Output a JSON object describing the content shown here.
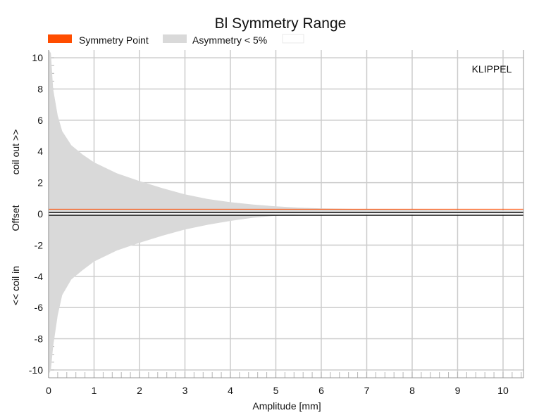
{
  "chart_data": {
    "type": "area",
    "title": "Bl Symmetry Range",
    "xlabel": "Amplitude [mm]",
    "ylabel": {
      "top": "coil out >>",
      "middle": "Offset",
      "bottom": "<< coil in"
    },
    "watermark": "KLIPPEL",
    "xlim": [
      0,
      10.45
    ],
    "ylim": [
      -10.5,
      10.5
    ],
    "xticks": [
      0,
      1,
      2,
      3,
      4,
      5,
      6,
      7,
      8,
      9,
      10
    ],
    "yticks": [
      -10,
      -8,
      -6,
      -4,
      -2,
      0,
      2,
      4,
      6,
      8,
      10
    ],
    "grid": true,
    "legend_position": "top-left",
    "series": [
      {
        "name": "Symmetry Point",
        "kind": "line",
        "color": "#ff4d00",
        "x": [
          0,
          10.45
        ],
        "y": [
          0.3,
          0.3
        ]
      },
      {
        "name": "Asymmetry < 5%",
        "kind": "band",
        "color": "#d9d9d9",
        "x": [
          0,
          0.05,
          0.1,
          0.2,
          0.3,
          0.5,
          0.75,
          1,
          1.5,
          2,
          2.5,
          3,
          3.5,
          4,
          4.5,
          5,
          5.5,
          6,
          7,
          8,
          9,
          10,
          10.45
        ],
        "upper": [
          10.5,
          10.3,
          8.0,
          6.3,
          5.3,
          4.4,
          3.8,
          3.3,
          2.6,
          2.1,
          1.65,
          1.25,
          0.95,
          0.75,
          0.6,
          0.48,
          0.4,
          0.35,
          0.3,
          0.27,
          0.25,
          0.23,
          0.22
        ],
        "lower": [
          -10.3,
          -10.0,
          -8.5,
          -6.5,
          -5.2,
          -4.2,
          -3.6,
          -3.05,
          -2.35,
          -1.85,
          -1.4,
          -1.0,
          -0.7,
          -0.45,
          -0.25,
          -0.12,
          -0.05,
          0.0,
          0.02,
          0.04,
          0.05,
          0.06,
          0.06
        ]
      },
      {
        "name": "",
        "kind": "line",
        "color": "#ffffff",
        "x": [
          0,
          10.45
        ],
        "y": [
          0,
          0
        ]
      }
    ]
  }
}
